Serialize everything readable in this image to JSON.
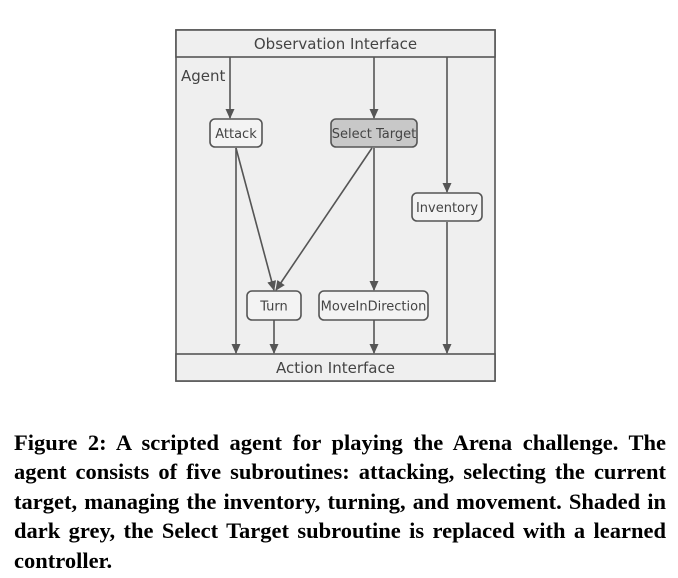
{
  "diagram": {
    "observation_interface": "Observation Interface",
    "action_interface": "Action Interface",
    "agent_label": "Agent",
    "nodes": {
      "attack": "Attack",
      "select_target": "Select Target",
      "inventory": "Inventory",
      "turn": "Turn",
      "move_in_direction": "MoveInDirection"
    },
    "colors": {
      "background": "#efefef",
      "border": "#555555",
      "node_fill": "#f3f3f3",
      "shaded_node_fill": "#c8c8c8"
    }
  },
  "caption": {
    "text": "Figure 2: A scripted agent for playing the Arena challenge. The agent consists of five subroutines: attacking, selecting the current target, managing the inventory, turning, and movement. Shaded in dark grey, the Select Target subroutine is replaced with a learned controller."
  }
}
